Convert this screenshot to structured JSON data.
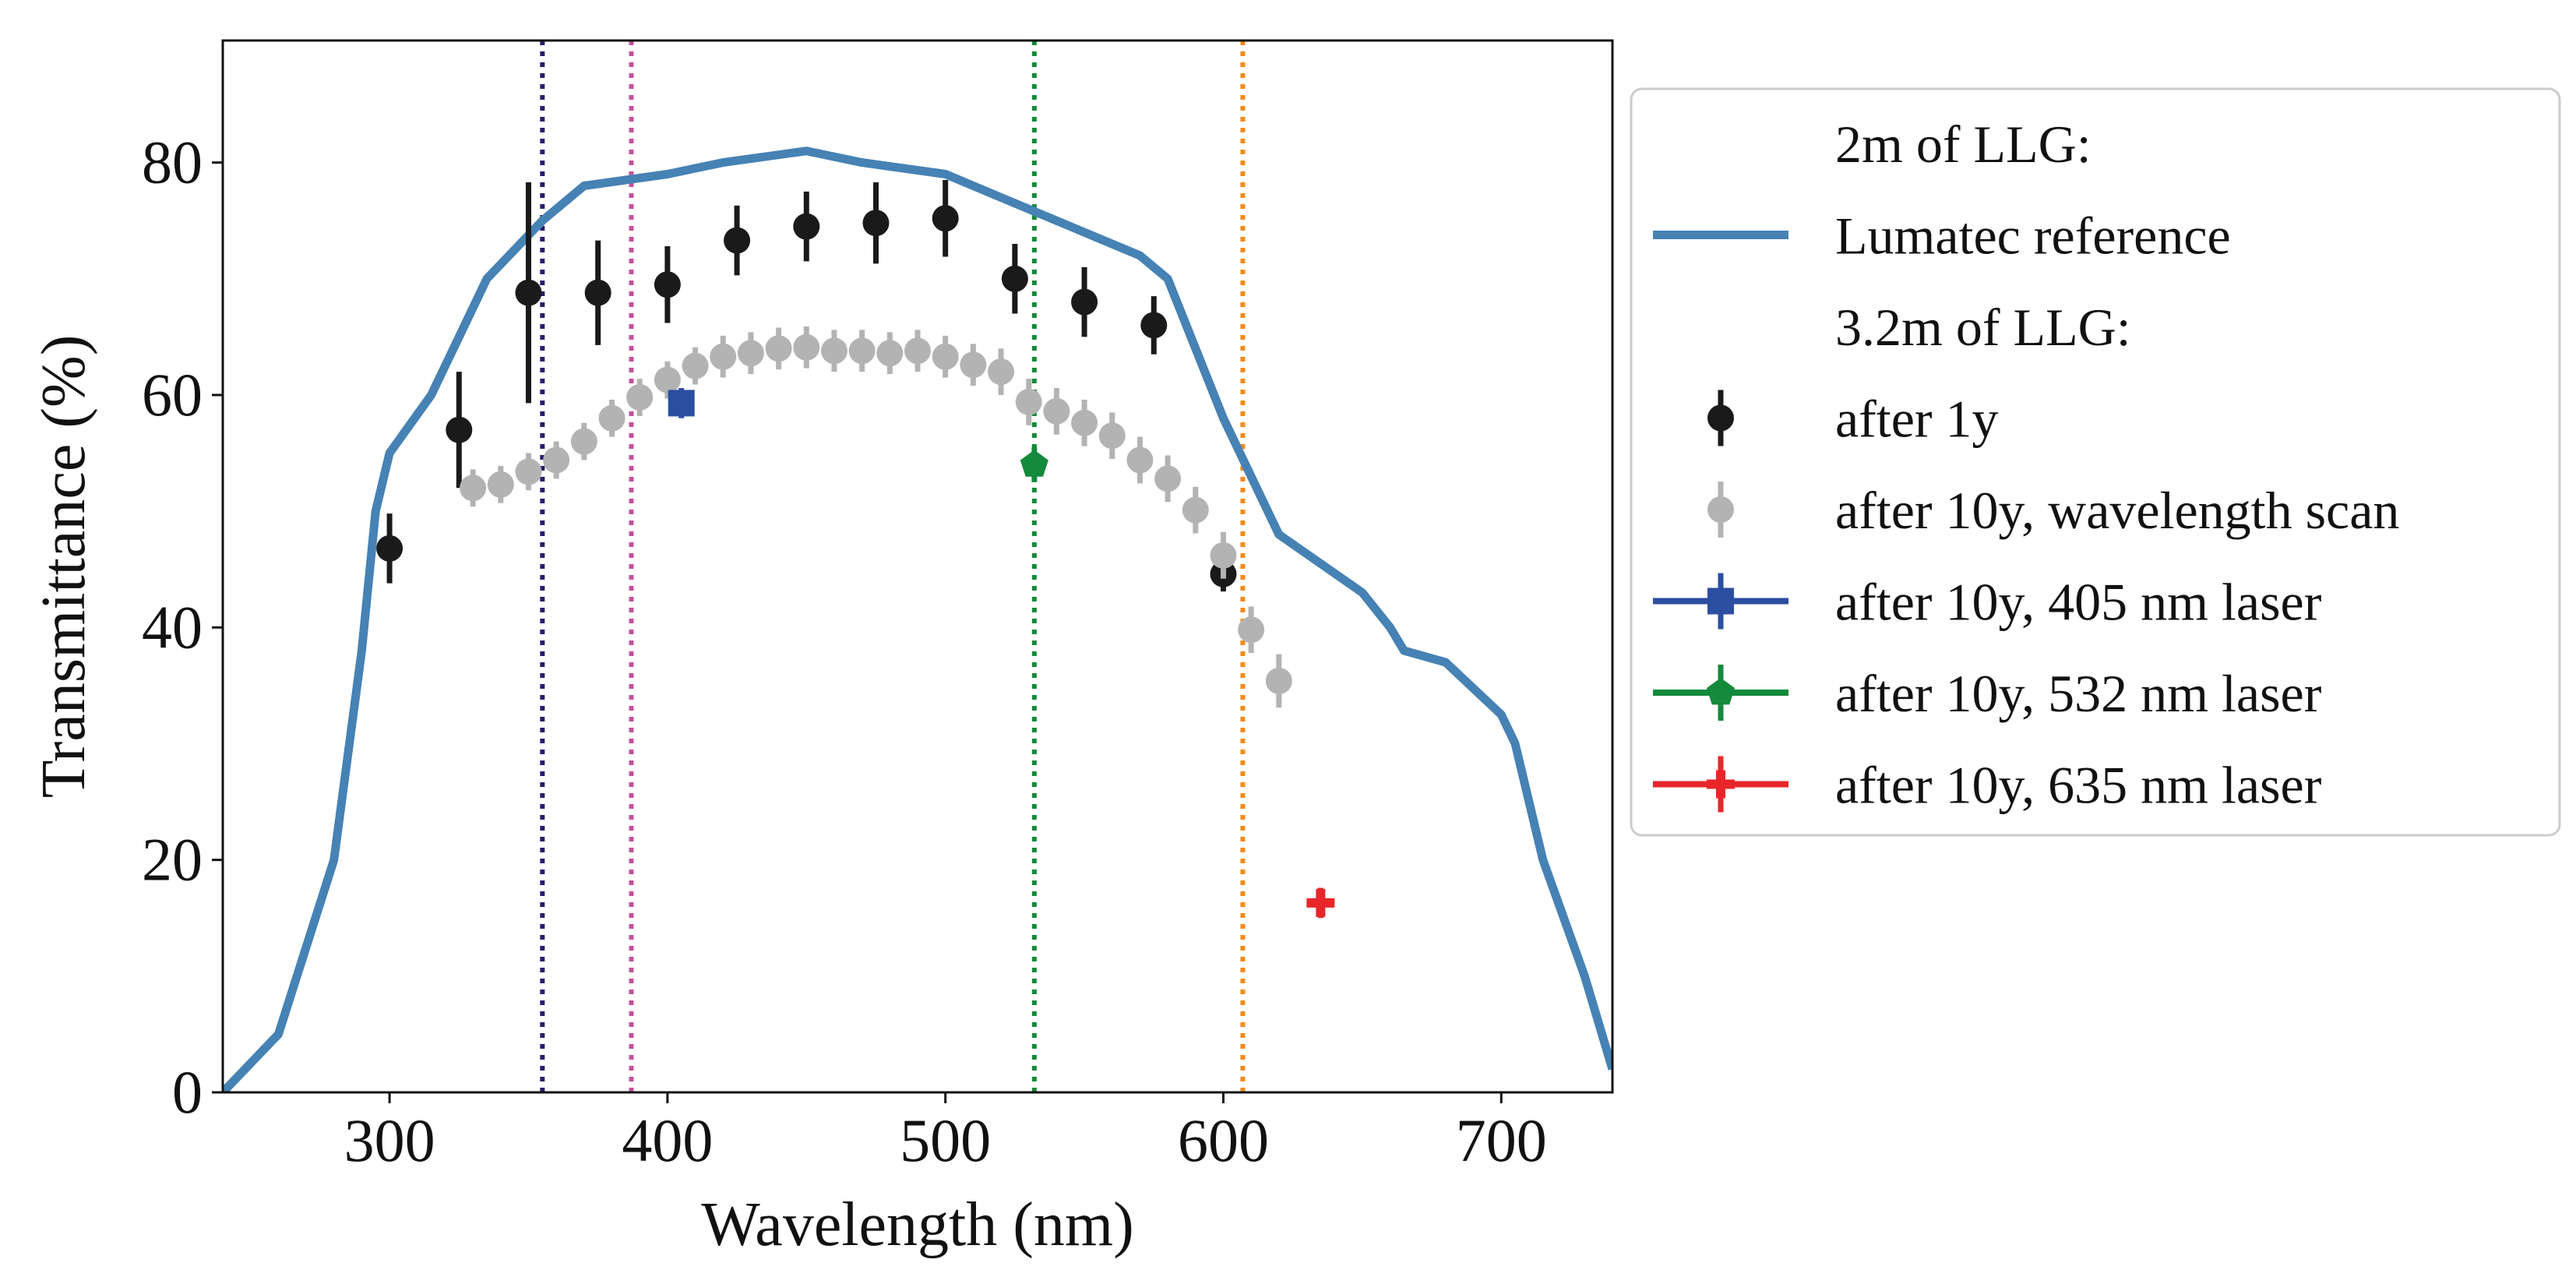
{
  "chart_data": {
    "type": "line",
    "title": "",
    "xlabel": "Wavelength (nm)",
    "ylabel": "Transmittance (%)",
    "xlim": [
      240,
      740
    ],
    "ylim": [
      0,
      90.5
    ],
    "xticks": [
      300,
      400,
      500,
      600,
      700
    ],
    "yticks": [
      0,
      20,
      40,
      60,
      80
    ],
    "grid": false,
    "legend_position": "outside-right",
    "legend": {
      "header_reference": "2m of LLG:",
      "header_measurements": "3.2m of LLG:",
      "items": [
        "Lumatec reference",
        "after 1y",
        "after 10y, wavelength scan",
        "after 10y, 405 nm laser",
        "after 10y, 532 nm laser",
        "after 10y, 635 nm laser"
      ]
    },
    "vertical_lines": [
      {
        "x": 355,
        "color": "#2a1b6e"
      },
      {
        "x": 387,
        "color": "#c3519b"
      },
      {
        "x": 532,
        "color": "#148a3c"
      },
      {
        "x": 607,
        "color": "#f28a1c"
      }
    ],
    "series": [
      {
        "name": "Lumatec reference",
        "kind": "line",
        "color": "#4682b4",
        "x": [
          240,
          260,
          280,
          290,
          295,
          300,
          315,
          335,
          355,
          370,
          400,
          420,
          450,
          470,
          500,
          520,
          545,
          570,
          580,
          590,
          600,
          620,
          650,
          660,
          665,
          680,
          700,
          705,
          715,
          730,
          740
        ],
        "y": [
          0,
          5,
          20,
          38,
          50,
          55,
          60,
          70,
          75,
          78,
          79,
          80,
          81,
          80,
          79,
          77,
          74.5,
          72,
          70,
          64,
          58,
          48,
          43,
          40,
          38,
          37,
          32.5,
          30,
          20,
          10,
          2
        ]
      },
      {
        "name": "after 1y",
        "kind": "errorbar",
        "color": "#1a1a1a",
        "marker": "circle",
        "x": [
          300,
          325,
          350,
          375,
          400,
          425,
          450,
          475,
          500,
          525,
          550,
          575,
          600
        ],
        "y": [
          46.8,
          57.0,
          68.8,
          68.8,
          69.5,
          73.3,
          74.5,
          74.8,
          75.2,
          70.0,
          68.0,
          66.0,
          44.6
        ],
        "yerr": [
          3.0,
          5.0,
          9.5,
          4.5,
          3.3,
          3.0,
          3.0,
          3.5,
          3.3,
          3.0,
          3.0,
          2.5,
          1.5
        ]
      },
      {
        "name": "after 10y, wavelength scan",
        "kind": "errorbar",
        "color": "#b3b3b3",
        "marker": "circle",
        "x": [
          330,
          340,
          350,
          360,
          370,
          380,
          390,
          400,
          410,
          420,
          430,
          440,
          450,
          460,
          470,
          480,
          490,
          500,
          510,
          520,
          530,
          540,
          550,
          560,
          570,
          580,
          590,
          600,
          610,
          620
        ],
        "y": [
          52.0,
          52.3,
          53.4,
          54.4,
          56.0,
          58.0,
          59.8,
          61.3,
          62.5,
          63.3,
          63.6,
          64.0,
          64.1,
          63.8,
          63.8,
          63.6,
          63.8,
          63.3,
          62.6,
          62.0,
          59.4,
          58.6,
          57.6,
          56.5,
          54.4,
          52.8,
          50.1,
          46.2,
          39.8,
          35.4
        ],
        "yerr": [
          1.6,
          1.6,
          1.6,
          1.6,
          1.6,
          1.6,
          1.6,
          1.6,
          1.6,
          1.8,
          1.8,
          1.8,
          1.8,
          1.8,
          1.8,
          1.8,
          1.8,
          1.8,
          1.8,
          2.0,
          2.0,
          2.0,
          2.0,
          2.0,
          2.0,
          2.0,
          2.0,
          2.0,
          2.0,
          2.3
        ]
      },
      {
        "name": "after 10y, 405 nm laser",
        "kind": "errorbar",
        "color": "#2c4ea0",
        "marker": "square",
        "x": [
          405
        ],
        "y": [
          59.3
        ],
        "yerr": [
          1.3
        ]
      },
      {
        "name": "after 10y, 532 nm laser",
        "kind": "errorbar",
        "color": "#148a3c",
        "marker": "pentagon",
        "x": [
          532
        ],
        "y": [
          54.0
        ],
        "yerr": [
          1.5
        ]
      },
      {
        "name": "after 10y, 635 nm laser",
        "kind": "errorbar",
        "color": "#e8262a",
        "marker": "plus",
        "x": [
          635
        ],
        "y": [
          16.3
        ],
        "yerr": [
          1.3
        ]
      }
    ]
  }
}
